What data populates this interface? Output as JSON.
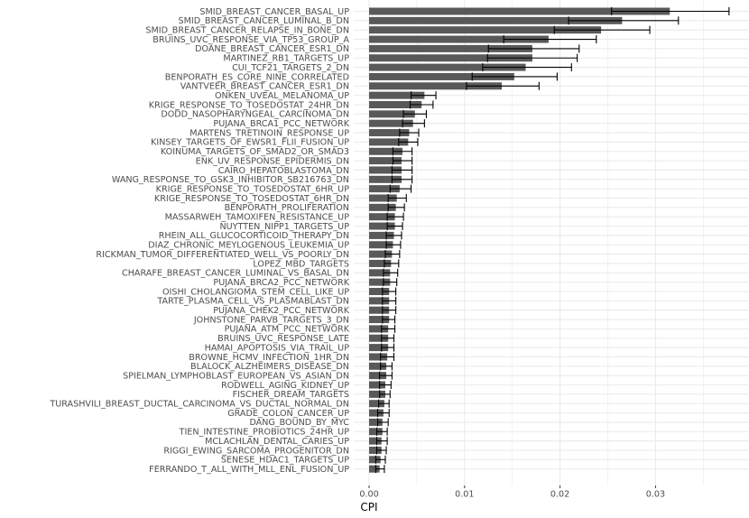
{
  "chart_data": {
    "type": "bar",
    "orientation": "horizontal",
    "xlabel": "CPI",
    "ylabel": "",
    "title": "",
    "xlim": [
      0,
      0.039
    ],
    "xticks": [
      0.0,
      0.01,
      0.02,
      0.03
    ],
    "xtick_labels": [
      "0.00",
      "0.01",
      "0.02",
      "0.03"
    ],
    "grid": true,
    "bar_color": "#595959",
    "panel_background": "#ffffff",
    "grid_color": "#ebebeb",
    "error_bar_color": "#000000",
    "categories": [
      "SMID_BREAST_CANCER_BASAL_UP",
      "SMID_BREAST_CANCER_LUMINAL_B_DN",
      "SMID_BREAST_CANCER_RELAPSE_IN_BONE_DN",
      "BRUINS_UVC_RESPONSE_VIA_TP53_GROUP_A",
      "DOANE_BREAST_CANCER_ESR1_DN",
      "MARTINEZ_RB1_TARGETS_UP",
      "CUI_TCF21_TARGETS_2_DN",
      "BENPORATH_ES_CORE_NINE_CORRELATED",
      "VANTVEER_BREAST_CANCER_ESR1_DN",
      "ONKEN_UVEAL_MELANOMA_UP",
      "KRIGE_RESPONSE_TO_TOSEDOSTAT_24HR_DN",
      "DODD_NASOPHARYNGEAL_CARCINOMA_DN",
      "PUJANA_BRCA1_PCC_NETWORK",
      "MARTENS_TRETINOIN_RESPONSE_UP",
      "KINSEY_TARGETS_OF_EWSR1_FLII_FUSION_UP",
      "KOINUMA_TARGETS_OF_SMAD2_OR_SMAD3",
      "ENK_UV_RESPONSE_EPIDERMIS_DN",
      "CAIRO_HEPATOBLASTOMA_DN",
      "WANG_RESPONSE_TO_GSK3_INHIBITOR_SB216763_DN",
      "KRIGE_RESPONSE_TO_TOSEDOSTAT_6HR_UP",
      "KRIGE_RESPONSE_TO_TOSEDOSTAT_6HR_DN",
      "BENPORATH_PROLIFERATION",
      "MASSARWEH_TAMOXIFEN_RESISTANCE_UP",
      "NUYTTEN_NIPP1_TARGETS_UP",
      "RHEIN_ALL_GLUCOCORTICOID_THERAPY_DN",
      "DIAZ_CHRONIC_MEYLOGENOUS_LEUKEMIA_UP",
      "RICKMAN_TUMOR_DIFFERENTIATED_WELL_VS_POORLY_DN",
      "LOPEZ_MBD_TARGETS",
      "CHARAFE_BREAST_CANCER_LUMINAL_VS_BASAL_DN",
      "PUJANA_BRCA2_PCC_NETWORK",
      "OISHI_CHOLANGIOMA_STEM_CELL_LIKE_UP",
      "TARTE_PLASMA_CELL_VS_PLASMABLAST_DN",
      "PUJANA_CHEK2_PCC_NETWORK",
      "JOHNSTONE_PARVB_TARGETS_3_DN",
      "PUJANA_ATM_PCC_NETWORK",
      "BRUINS_UVC_RESPONSE_LATE",
      "HAMAI_APOPTOSIS_VIA_TRAIL_UP",
      "BROWNE_HCMV_INFECTION_1HR_DN",
      "BLALOCK_ALZHEIMERS_DISEASE_DN",
      "SPIELMAN_LYMPHOBLAST_EUROPEAN_VS_ASIAN_DN",
      "RODWELL_AGING_KIDNEY_UP",
      "FISCHER_DREAM_TARGETS",
      "TURASHVILI_BREAST_DUCTAL_CARCINOMA_VS_DUCTAL_NORMAL_DN",
      "GRADE_COLON_CANCER_UP",
      "DANG_BOUND_BY_MYC",
      "TIEN_INTESTINE_PROBIOTICS_24HR_UP",
      "MCLACHLAN_DENTAL_CARIES_UP",
      "RIGGI_EWING_SARCOMA_PROGENITOR_DN",
      "SENESE_HDAC1_TARGETS_UP",
      "FERRANDO_T_ALL_WITH_MLL_ENL_FUSION_UP"
    ],
    "values": [
      0.0315,
      0.0265,
      0.0243,
      0.0188,
      0.0171,
      0.0171,
      0.0164,
      0.0152,
      0.0139,
      0.0058,
      0.0055,
      0.0048,
      0.0046,
      0.0042,
      0.0041,
      0.0035,
      0.0034,
      0.0034,
      0.0034,
      0.0032,
      0.0029,
      0.0028,
      0.0027,
      0.0027,
      0.0026,
      0.0025,
      0.0024,
      0.0023,
      0.0022,
      0.0022,
      0.0021,
      0.0021,
      0.0021,
      0.0021,
      0.002,
      0.002,
      0.002,
      0.0019,
      0.0018,
      0.0018,
      0.0017,
      0.0017,
      0.0016,
      0.0015,
      0.0014,
      0.0014,
      0.0013,
      0.0013,
      0.0012,
      0.0011
    ],
    "error_low": [
      0.0254,
      0.0209,
      0.0194,
      0.0141,
      0.0125,
      0.0124,
      0.0119,
      0.0108,
      0.0102,
      0.0044,
      0.0043,
      0.0036,
      0.0035,
      0.0032,
      0.0031,
      0.0025,
      0.0025,
      0.0024,
      0.0024,
      0.0022,
      0.002,
      0.002,
      0.0019,
      0.0019,
      0.0018,
      0.0018,
      0.0017,
      0.0016,
      0.0015,
      0.0015,
      0.0014,
      0.0014,
      0.0014,
      0.0014,
      0.0013,
      0.0013,
      0.0013,
      0.0012,
      0.0012,
      0.0011,
      0.0011,
      0.0011,
      0.001,
      0.0009,
      0.0009,
      0.0008,
      0.0008,
      0.0008,
      0.0007,
      0.0007
    ],
    "error_high": [
      0.0377,
      0.0324,
      0.0294,
      0.0238,
      0.022,
      0.0218,
      0.0212,
      0.0197,
      0.0178,
      0.007,
      0.0067,
      0.006,
      0.0058,
      0.0052,
      0.0051,
      0.0045,
      0.0045,
      0.0045,
      0.0045,
      0.0044,
      0.0039,
      0.0037,
      0.0036,
      0.0035,
      0.0034,
      0.0033,
      0.0032,
      0.0031,
      0.003,
      0.0029,
      0.0028,
      0.0028,
      0.0028,
      0.0027,
      0.0027,
      0.0026,
      0.0026,
      0.0026,
      0.0024,
      0.0024,
      0.0023,
      0.0022,
      0.0021,
      0.0021,
      0.002,
      0.0019,
      0.0019,
      0.0018,
      0.0017,
      0.0016
    ]
  }
}
